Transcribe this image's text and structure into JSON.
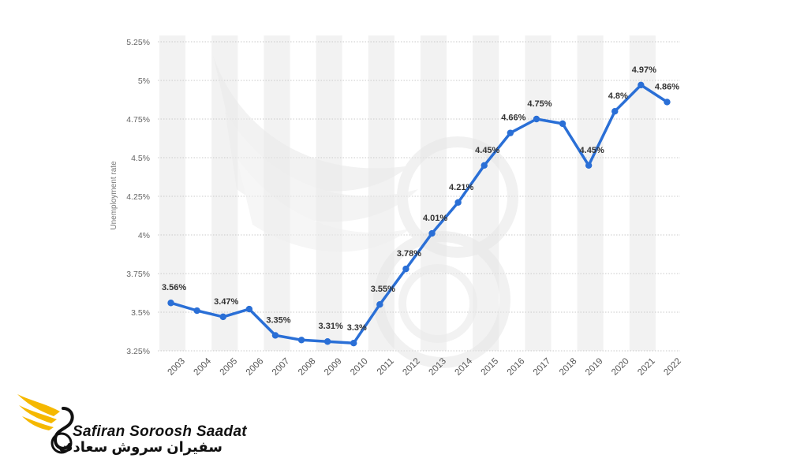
{
  "chart_data": {
    "type": "line",
    "x": [
      "2003",
      "2004",
      "2005",
      "2006",
      "2007",
      "2008",
      "2009",
      "2010",
      "2011",
      "2012",
      "2013",
      "2014",
      "2015",
      "2016",
      "2017",
      "2018",
      "2019",
      "2020",
      "2021",
      "2022"
    ],
    "series": [
      {
        "values": [
          3.56,
          3.51,
          3.47,
          3.52,
          3.35,
          3.32,
          3.31,
          3.3,
          3.55,
          3.78,
          4.01,
          4.21,
          4.45,
          4.66,
          4.75,
          4.72,
          4.45,
          4.8,
          4.97,
          4.86
        ]
      }
    ],
    "data_labels": [
      "3.56%",
      "",
      "3.47%",
      "",
      "3.35%",
      "",
      "3.31%",
      "3.3%",
      "3.55%",
      "3.78%",
      "4.01%",
      "4.21%",
      "4.45%",
      "4.66%",
      "4.75%",
      "",
      "4.45%",
      "4.8%",
      "4.97%",
      "4.86%"
    ],
    "ylabel": "Unemployment rate",
    "ylim": [
      3.25,
      5.25
    ],
    "yticks": [
      3.25,
      3.5,
      3.75,
      4,
      4.25,
      4.5,
      4.75,
      5,
      5.25
    ],
    "ytick_labels": [
      "3.25%",
      "3.5%",
      "3.75%",
      "4%",
      "4.25%",
      "4.5%",
      "4.75%",
      "5%",
      "5.25%"
    ],
    "grid": true,
    "line_color": "#2a6fd6",
    "band_color": "#f2f2f2"
  },
  "logo": {
    "name_en": "Safiran Soroosh Saadat",
    "name_fa": "سفیران سروش سعادت"
  }
}
